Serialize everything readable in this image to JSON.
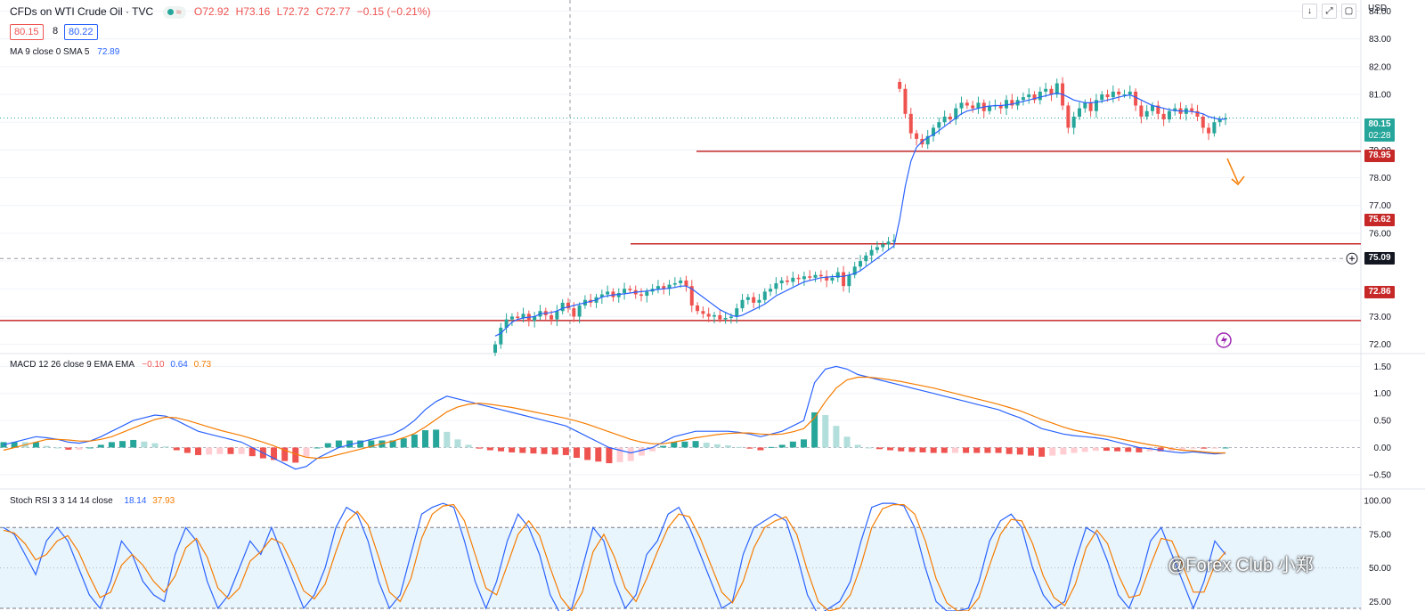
{
  "header": {
    "title": "CFDs on WTI Crude Oil · TVC",
    "ohlc": {
      "o": "O72.92",
      "h": "H73.16",
      "l": "L72.72",
      "c": "C72.77",
      "chg": "−0.15 (−0.21%)"
    },
    "bid": "80.15",
    "spread": "8",
    "ask": "80.22",
    "currency": "USD",
    "buttons": {
      "down": "↓",
      "expand": "⤢",
      "screen": "▢"
    }
  },
  "legends": {
    "ma": {
      "label": "MA 9 close 0 SMA 5",
      "value": "72.89"
    },
    "macd": {
      "label": "MACD 12 26 close 9 EMA EMA",
      "hist": "−0.10",
      "macd": "0.64",
      "signal": "0.73"
    },
    "stoch": {
      "label": "Stoch RSI 3 3 14 14 close",
      "k": "18.14",
      "d": "37.93"
    }
  },
  "price_tags": {
    "last": "80.15",
    "countdown": "02:28",
    "level_1": "78.95",
    "level_2": "75.62",
    "crosshair": "75.09",
    "level_3": "72.86"
  },
  "watermark": "@Forex Club 小郑",
  "colors": {
    "up": "#26a69a",
    "down": "#ef5350",
    "ma": "#2962ff",
    "signal": "#f57c00",
    "level": "#c62828"
  },
  "chart_data": [
    {
      "type": "candlestick",
      "title": "CFDs on WTI Crude Oil · TVC",
      "ylim": [
        71.7,
        84.4
      ],
      "y_ticks": [
        "84.00",
        "83.00",
        "82.00",
        "81.00",
        "80.00",
        "79.00",
        "78.00",
        "77.00",
        "76.00",
        "75.00",
        "74.00",
        "73.00",
        "72.00"
      ],
      "horizontal_levels": [
        78.95,
        75.62,
        72.86
      ],
      "close": [
        72.0,
        72.6,
        72.9,
        73.0,
        72.95,
        73.1,
        72.85,
        73.0,
        73.2,
        73.05,
        72.9,
        73.2,
        73.5,
        73.3,
        73.0,
        73.4,
        73.6,
        73.5,
        73.7,
        73.8,
        73.9,
        73.7,
        73.85,
        74.0,
        73.95,
        73.8,
        73.75,
        73.9,
        74.0,
        74.1,
        74.0,
        74.15,
        74.2,
        74.3,
        74.1,
        73.4,
        73.2,
        73.1,
        73.0,
        73.05,
        72.9,
        72.95,
        73.0,
        73.3,
        73.6,
        73.7,
        73.5,
        73.6,
        73.9,
        74.0,
        74.2,
        74.3,
        74.25,
        74.4,
        74.35,
        74.45,
        74.4,
        74.5,
        74.45,
        74.3,
        74.4,
        74.6,
        74.1,
        74.5,
        74.8,
        75.0,
        75.2,
        75.4,
        75.5,
        75.6,
        75.7,
        75.75,
        81.2,
        80.3,
        79.6,
        79.4,
        79.2,
        79.5,
        79.8,
        80.0,
        80.2,
        80.1,
        80.5,
        80.7,
        80.6,
        80.5,
        80.7,
        80.4,
        80.6,
        80.6,
        80.5,
        80.8,
        80.6,
        80.8,
        80.9,
        81.0,
        80.8,
        81.1,
        81.2,
        81.0,
        81.4,
        80.6,
        79.8,
        80.2,
        80.5,
        80.7,
        80.4,
        80.8,
        81.0,
        80.9,
        81.1,
        81.0,
        81.0,
        81.1,
        80.6,
        80.2,
        80.4,
        80.6,
        80.3,
        80.1,
        80.4,
        80.5,
        80.3,
        80.5,
        80.4,
        80.2,
        79.8,
        79.6,
        80.0,
        80.1,
        80.15
      ],
      "ma_9": [
        72.3,
        72.4,
        72.6,
        72.8,
        72.9,
        72.95,
        72.98,
        73.0,
        73.1,
        73.12,
        73.15,
        73.2,
        73.3,
        73.35,
        73.4,
        73.45,
        73.5,
        73.55,
        73.6,
        73.7,
        73.75,
        73.78,
        73.8,
        73.82,
        73.85,
        73.88,
        73.9,
        73.92,
        73.95,
        73.98,
        74.0,
        74.02,
        74.05,
        74.1,
        74.1,
        74.0,
        73.85,
        73.7,
        73.55,
        73.4,
        73.25,
        73.15,
        73.05,
        73.0,
        73.05,
        73.15,
        73.25,
        73.35,
        73.45,
        73.6,
        73.75,
        73.85,
        73.95,
        74.05,
        74.15,
        74.25,
        74.3,
        74.35,
        74.4,
        74.42,
        74.44,
        74.45,
        74.45,
        74.5,
        74.55,
        74.65,
        74.8,
        74.95,
        75.1,
        75.25,
        75.4,
        75.55,
        76.5,
        77.7,
        78.6,
        79.1,
        79.3,
        79.45,
        79.55,
        79.7,
        79.85,
        80.0,
        80.15,
        80.3,
        80.4,
        80.45,
        80.5,
        80.55,
        80.58,
        80.6,
        80.6,
        80.62,
        80.65,
        80.7,
        80.75,
        80.8,
        80.85,
        80.9,
        80.95,
        81.0,
        81.05,
        81.0,
        80.9,
        80.8,
        80.75,
        80.7,
        80.7,
        80.72,
        80.75,
        80.8,
        80.85,
        80.9,
        80.95,
        80.98,
        80.9,
        80.8,
        80.7,
        80.6,
        80.55,
        80.5,
        80.45,
        80.42,
        80.4,
        80.4,
        80.38,
        80.35,
        80.3,
        80.2,
        80.15,
        80.1,
        80.12
      ]
    },
    {
      "type": "line",
      "title": "MACD 12 26 close 9 EMA EMA",
      "ylim": [
        -0.75,
        1.72
      ],
      "y_ticks": [
        "1.50",
        "1.00",
        "0.50",
        "0.00",
        "−0.50"
      ],
      "macd": [
        0.05,
        0.1,
        0.15,
        0.2,
        0.18,
        0.15,
        0.1,
        0.08,
        0.12,
        0.2,
        0.3,
        0.4,
        0.5,
        0.55,
        0.6,
        0.58,
        0.5,
        0.4,
        0.3,
        0.25,
        0.2,
        0.15,
        0.1,
        0.0,
        -0.1,
        -0.2,
        -0.3,
        -0.4,
        -0.35,
        -0.2,
        -0.1,
        0.0,
        0.05,
        0.1,
        0.15,
        0.2,
        0.25,
        0.35,
        0.5,
        0.7,
        0.85,
        0.95,
        0.9,
        0.85,
        0.8,
        0.75,
        0.7,
        0.65,
        0.6,
        0.55,
        0.5,
        0.45,
        0.4,
        0.3,
        0.2,
        0.1,
        0.0,
        -0.05,
        -0.1,
        -0.05,
        0.0,
        0.1,
        0.2,
        0.25,
        0.3,
        0.3,
        0.3,
        0.3,
        0.28,
        0.25,
        0.2,
        0.25,
        0.3,
        0.4,
        0.5,
        1.2,
        1.45,
        1.5,
        1.45,
        1.35,
        1.3,
        1.25,
        1.2,
        1.15,
        1.1,
        1.05,
        1.0,
        0.95,
        0.9,
        0.85,
        0.8,
        0.75,
        0.7,
        0.62,
        0.55,
        0.45,
        0.35,
        0.3,
        0.25,
        0.22,
        0.2,
        0.18,
        0.15,
        0.1,
        0.05,
        0.0,
        -0.02,
        -0.05,
        -0.08,
        -0.1,
        -0.08,
        -0.1,
        -0.12,
        -0.1
      ],
      "signal": [
        -0.05,
        0.0,
        0.05,
        0.1,
        0.15,
        0.15,
        0.14,
        0.12,
        0.12,
        0.15,
        0.2,
        0.28,
        0.36,
        0.44,
        0.52,
        0.56,
        0.55,
        0.5,
        0.44,
        0.38,
        0.32,
        0.27,
        0.22,
        0.16,
        0.1,
        0.03,
        -0.05,
        -0.12,
        -0.18,
        -0.2,
        -0.18,
        -0.13,
        -0.08,
        -0.03,
        0.02,
        0.07,
        0.12,
        0.18,
        0.26,
        0.38,
        0.52,
        0.66,
        0.75,
        0.8,
        0.82,
        0.8,
        0.77,
        0.74,
        0.7,
        0.66,
        0.62,
        0.58,
        0.54,
        0.49,
        0.43,
        0.36,
        0.29,
        0.22,
        0.15,
        0.1,
        0.07,
        0.07,
        0.1,
        0.14,
        0.18,
        0.21,
        0.24,
        0.26,
        0.27,
        0.27,
        0.25,
        0.24,
        0.25,
        0.29,
        0.35,
        0.55,
        0.85,
        1.1,
        1.25,
        1.3,
        1.3,
        1.28,
        1.25,
        1.22,
        1.18,
        1.14,
        1.1,
        1.05,
        1.0,
        0.95,
        0.9,
        0.85,
        0.8,
        0.74,
        0.68,
        0.6,
        0.52,
        0.45,
        0.38,
        0.32,
        0.28,
        0.24,
        0.21,
        0.17,
        0.13,
        0.09,
        0.05,
        0.02,
        -0.02,
        -0.05,
        -0.06,
        -0.08,
        -0.1,
        -0.1
      ]
    },
    {
      "type": "line",
      "title": "Stoch RSI 3 3 14 14 close",
      "ylim": [
        18,
        108
      ],
      "y_ticks": [
        "100.00",
        "75.00",
        "50.00",
        "25.00"
      ],
      "band": [
        20,
        80
      ],
      "k": [
        80,
        75,
        60,
        45,
        70,
        80,
        70,
        50,
        30,
        20,
        40,
        70,
        60,
        40,
        30,
        25,
        60,
        80,
        70,
        40,
        20,
        30,
        50,
        70,
        60,
        80,
        60,
        40,
        20,
        30,
        50,
        80,
        95,
        90,
        70,
        40,
        20,
        30,
        60,
        90,
        95,
        98,
        95,
        70,
        40,
        20,
        40,
        70,
        90,
        80,
        60,
        30,
        15,
        20,
        50,
        80,
        70,
        40,
        20,
        30,
        60,
        70,
        90,
        95,
        80,
        60,
        40,
        20,
        25,
        60,
        80,
        85,
        90,
        85,
        60,
        30,
        15,
        20,
        25,
        40,
        70,
        95,
        98,
        98,
        96,
        80,
        50,
        25,
        18,
        18,
        20,
        40,
        70,
        85,
        90,
        80,
        50,
        30,
        20,
        25,
        55,
        80,
        75,
        55,
        30,
        20,
        40,
        70,
        80,
        60,
        40,
        20,
        40,
        70,
        60
      ],
      "d": [
        78,
        76,
        68,
        56,
        60,
        70,
        74,
        62,
        44,
        28,
        32,
        52,
        60,
        52,
        40,
        32,
        44,
        65,
        72,
        58,
        35,
        27,
        35,
        55,
        62,
        72,
        68,
        52,
        33,
        27,
        38,
        62,
        84,
        92,
        82,
        58,
        32,
        25,
        42,
        72,
        90,
        96,
        97,
        85,
        60,
        35,
        30,
        52,
        75,
        85,
        74,
        50,
        28,
        18,
        32,
        62,
        75,
        58,
        35,
        25,
        42,
        62,
        80,
        90,
        88,
        72,
        52,
        32,
        24,
        40,
        65,
        80,
        85,
        88,
        75,
        48,
        25,
        18,
        20,
        30,
        52,
        80,
        94,
        97,
        97,
        90,
        70,
        42,
        24,
        18,
        18,
        28,
        52,
        75,
        86,
        85,
        68,
        44,
        28,
        22,
        38,
        65,
        78,
        68,
        45,
        28,
        30,
        52,
        72,
        70,
        52,
        32,
        32,
        52,
        62
      ]
    }
  ]
}
